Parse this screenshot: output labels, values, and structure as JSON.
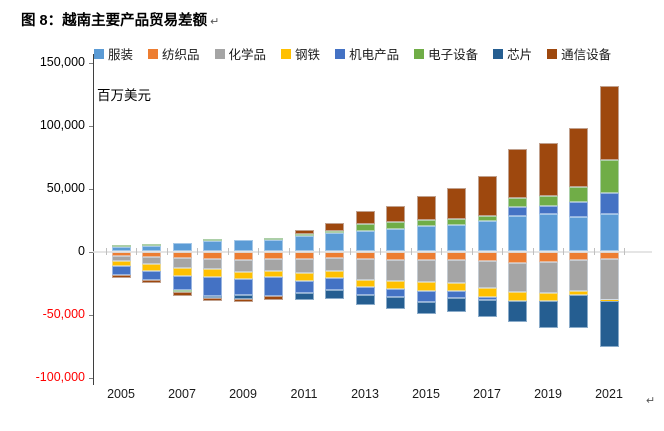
{
  "figure": {
    "title": "图 8：越南主要产品贸易差额",
    "paragraph_mark": "↵"
  },
  "chart_data": {
    "type": "bar",
    "stacked": true,
    "title": "图 8：越南主要产品贸易差额",
    "ylabel": "百万美元",
    "xlabel": "",
    "ylim": [
      -100000,
      150000
    ],
    "grid": false,
    "legend_position": "top",
    "negative_tick_color": "#ff0000",
    "categories": [
      "2005",
      "2006",
      "2007",
      "2008",
      "2009",
      "2010",
      "2011",
      "2012",
      "2013",
      "2014",
      "2015",
      "2016",
      "2017",
      "2018",
      "2019",
      "2020",
      "2021"
    ],
    "x_tick_labels": [
      "2005",
      "2007",
      "2009",
      "2011",
      "2013",
      "2015",
      "2017",
      "2019",
      "2021"
    ],
    "y_ticks": [
      {
        "label": "150,000",
        "value": 150000,
        "color": "#000000"
      },
      {
        "label": "100,000",
        "value": 100000,
        "color": "#000000"
      },
      {
        "label": "50,000",
        "value": 50000,
        "color": "#000000"
      },
      {
        "label": "0",
        "value": 0,
        "color": "#000000"
      },
      {
        "label": "-50,000",
        "value": -50000,
        "color": "#ff0000"
      },
      {
        "label": "-100,000",
        "value": -100000,
        "color": "#ff0000"
      }
    ],
    "series": [
      {
        "name": "服装",
        "id": "clothing",
        "color": "#5B9BD5",
        "values": [
          3200,
          4200,
          6400,
          8500,
          9300,
          9300,
          12400,
          14500,
          15900,
          18000,
          19900,
          21400,
          24600,
          28300,
          29600,
          27000,
          30000
        ]
      },
      {
        "name": "纺织品",
        "id": "textiles",
        "color": "#ED7D31",
        "values": [
          -3400,
          -4200,
          -5300,
          -5600,
          -6600,
          -6100,
          -5600,
          -5000,
          -5800,
          -6600,
          -7100,
          -6600,
          -7900,
          -9300,
          -8500,
          -6600,
          -6000
        ]
      },
      {
        "name": "化学品",
        "id": "chemicals",
        "color": "#A5A5A5",
        "values": [
          -4500,
          -5800,
          -7900,
          -7900,
          -9500,
          -9300,
          -11700,
          -10300,
          -16700,
          -16900,
          -17200,
          -18500,
          -21200,
          -22500,
          -24600,
          -24600,
          -32500
        ]
      },
      {
        "name": "钢铁",
        "id": "steel",
        "color": "#FFC000",
        "values": [
          -4000,
          -5800,
          -6400,
          -6400,
          -5800,
          -4500,
          -5800,
          -5600,
          -5300,
          -6100,
          -7100,
          -6400,
          -7400,
          -7400,
          -6100,
          -3200,
          -500
        ]
      },
      {
        "name": "机电产品",
        "id": "machinery-electrical",
        "color": "#4472C4",
        "values": [
          -6600,
          -6900,
          -11100,
          -15300,
          -12700,
          -15300,
          -10100,
          -9500,
          -6400,
          -6600,
          -8700,
          -5300,
          -1800,
          7400,
          6600,
          11900,
          16700
        ]
      },
      {
        "name": "电子设备",
        "id": "electronic-equipment",
        "color": "#70AD47",
        "values": [
          2100,
          2100,
          -1500,
          1800,
          0,
          1800,
          1300,
          1800,
          5600,
          5300,
          4800,
          4000,
          3200,
          6600,
          7900,
          11900,
          26300
        ]
      },
      {
        "name": "芯片",
        "id": "chips",
        "color": "#255E91",
        "values": [
          0,
          0,
          0,
          -1600,
          -3200,
          0,
          -5300,
          -7100,
          -7900,
          -9300,
          -9800,
          -11400,
          -13700,
          -16900,
          -21200,
          -26400,
          -36500
        ]
      },
      {
        "name": "通信设备",
        "id": "communication-equipment",
        "color": "#9E480E",
        "values": [
          -2600,
          -2600,
          -2900,
          -2600,
          -2100,
          -3400,
          3400,
          6100,
          10300,
          13200,
          19300,
          25200,
          31800,
          38900,
          41800,
          47600,
          58200
        ]
      }
    ]
  }
}
